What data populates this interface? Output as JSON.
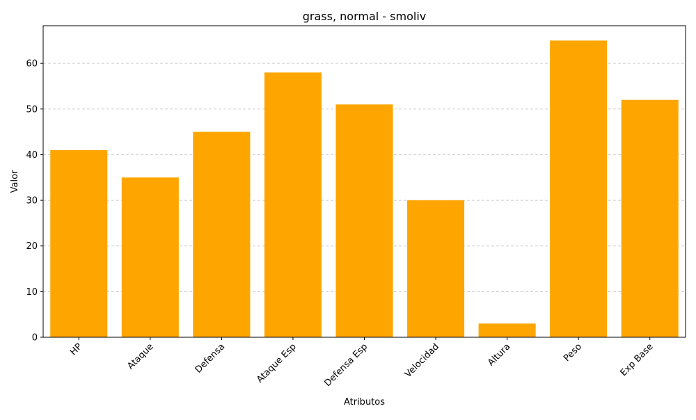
{
  "chart_data": {
    "type": "bar",
    "title": "grass, normal - smoliv",
    "xlabel": "Atributos",
    "ylabel": "Valor",
    "categories": [
      "HP",
      "Ataque",
      "Defensa",
      "Ataque Esp",
      "Defensa Esp",
      "Velocidad",
      "Altura",
      "Peso",
      "Exp Base"
    ],
    "values": [
      41,
      35,
      45,
      58,
      51,
      30,
      3,
      65,
      52
    ],
    "ylim": [
      0,
      68.25
    ],
    "yticks": [
      0,
      10,
      20,
      30,
      40,
      50,
      60
    ],
    "grid": "y-dashed",
    "bar_color": "#ffa500",
    "grid_color": "#cccccc"
  }
}
